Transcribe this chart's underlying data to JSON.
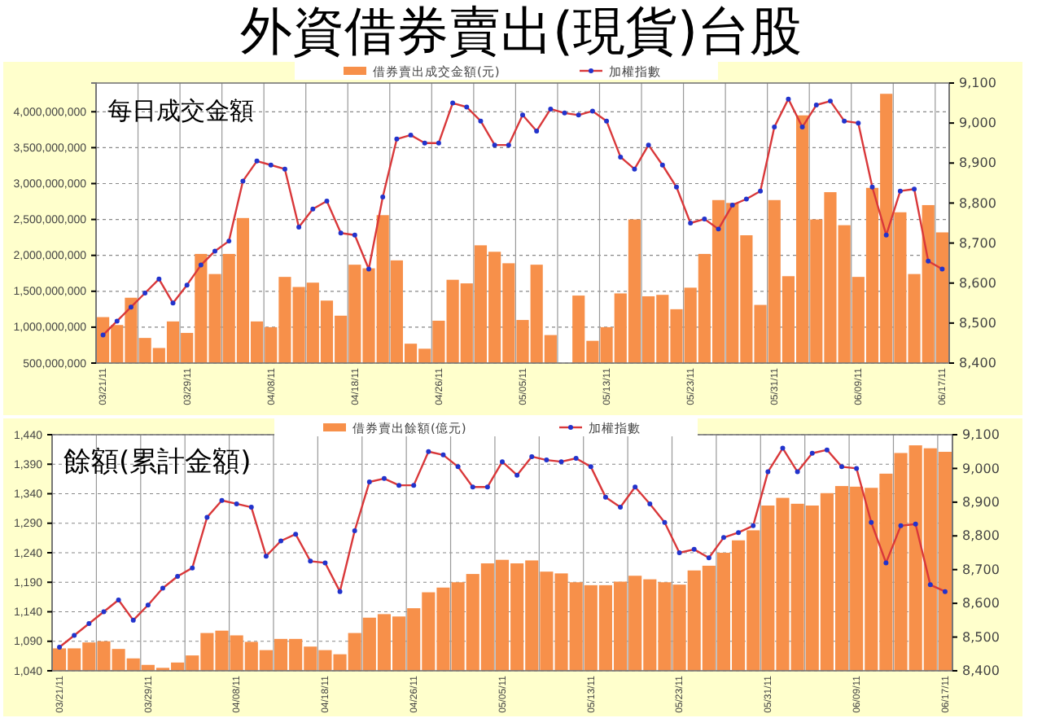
{
  "chart_data": [
    {
      "type": "bar",
      "title": "外資借券賣出(現貨)台股",
      "annotations": [
        "每日成交金額"
      ],
      "categories": [
        "03/21/11",
        null,
        null,
        null,
        null,
        null,
        "03/29/11",
        null,
        null,
        null,
        null,
        null,
        "04/08/11",
        null,
        null,
        null,
        null,
        null,
        "04/18/11",
        null,
        null,
        null,
        null,
        null,
        "04/26/11",
        null,
        null,
        null,
        null,
        null,
        "05/05/11",
        null,
        null,
        null,
        null,
        null,
        "05/13/11",
        null,
        null,
        null,
        null,
        null,
        "05/23/11",
        null,
        null,
        null,
        null,
        null,
        "05/31/11",
        null,
        null,
        null,
        null,
        null,
        "06/09/11",
        null,
        null,
        null,
        null,
        null,
        "06/17/11"
      ],
      "series": [
        {
          "name": "借券賣出成交金額(元)",
          "color": "#f7904a",
          "values": [
            1140000000,
            1030000000,
            1410000000,
            850000000,
            710000000,
            1080000000,
            920000000,
            2020000000,
            1740000000,
            2020000000,
            2520000000,
            1080000000,
            1000000000,
            1700000000,
            1560000000,
            1620000000,
            1370000000,
            1160000000,
            1870000000,
            1820000000,
            2560000000,
            1930000000,
            770000000,
            700000000,
            1090000000,
            1660000000,
            1610000000,
            2140000000,
            2050000000,
            1890000000,
            1100000000,
            1870000000,
            890000000,
            null,
            1440000000,
            810000000,
            1000000000,
            1470000000,
            2500000000,
            1430000000,
            1450000000,
            1250000000,
            1550000000,
            2020000000,
            2770000000,
            2730000000,
            2280000000,
            1310000000,
            2770000000,
            1710000000,
            3950000000,
            2500000000,
            2880000000,
            2420000000,
            1700000000,
            2940000000,
            4250000000,
            2600000000,
            1740000000,
            2700000000,
            2320000000
          ]
        },
        {
          "type": "line",
          "name": "加權指數",
          "color": "#d9383a",
          "axis": "y2",
          "values": [
            8470,
            8505,
            8540,
            8575,
            8610,
            8550,
            8595,
            8645,
            8680,
            8705,
            8855,
            8905,
            8895,
            8885,
            8740,
            8785,
            8805,
            8725,
            8720,
            8635,
            8815,
            8960,
            8970,
            8950,
            8950,
            9050,
            9040,
            9005,
            8945,
            8945,
            9020,
            8980,
            9035,
            9025,
            9020,
            9030,
            9005,
            8915,
            8885,
            8945,
            8895,
            8840,
            8750,
            8760,
            8735,
            8795,
            8810,
            8830,
            8990,
            9060,
            8990,
            9045,
            9055,
            9005,
            9000,
            8840,
            8720,
            8830,
            8835,
            8655,
            8635
          ]
        }
      ],
      "ylim": [
        500000000,
        4400000000
      ],
      "yticks": [
        {
          "value": 500000000,
          "label": "500,000,000"
        },
        {
          "value": 1000000000,
          "label": "1,000,000,000"
        },
        {
          "value": 1500000000,
          "label": "1,500,000,000"
        },
        {
          "value": 2000000000,
          "label": "2,000,000,000"
        },
        {
          "value": 2500000000,
          "label": "2,500,000,000"
        },
        {
          "value": 3000000000,
          "label": "3,000,000,000"
        },
        {
          "value": 3500000000,
          "label": "3,500,000,000"
        },
        {
          "value": 4000000000,
          "label": "4,000,000,000"
        }
      ],
      "y2lim": [
        8400,
        9100
      ],
      "y2ticks": [
        {
          "value": 8400,
          "label": "8,400"
        },
        {
          "value": 8500,
          "label": "8,500"
        },
        {
          "value": 8600,
          "label": "8,600"
        },
        {
          "value": 8700,
          "label": "8,700"
        },
        {
          "value": 8800,
          "label": "8,800"
        },
        {
          "value": 8900,
          "label": "8,900"
        },
        {
          "value": 9000,
          "label": "9,000"
        },
        {
          "value": 9100,
          "label": "9,100"
        }
      ],
      "grid": true,
      "legend": "top",
      "marker": "circle"
    },
    {
      "type": "bar",
      "annotations": [
        "餘額(累計金額)"
      ],
      "categories": [
        "03/21/11",
        null,
        null,
        null,
        null,
        null,
        "03/29/11",
        null,
        null,
        null,
        null,
        null,
        "04/08/11",
        null,
        null,
        null,
        null,
        null,
        "04/18/11",
        null,
        null,
        null,
        null,
        null,
        "04/26/11",
        null,
        null,
        null,
        null,
        null,
        "05/05/11",
        null,
        null,
        null,
        null,
        null,
        "05/13/11",
        null,
        null,
        null,
        null,
        null,
        "05/23/11",
        null,
        null,
        null,
        null,
        null,
        "05/31/11",
        null,
        null,
        null,
        null,
        null,
        "06/09/11",
        null,
        null,
        null,
        null,
        null,
        "06/17/11"
      ],
      "series": [
        {
          "name": "借券賣出餘額(億元)",
          "color": "#f7904a",
          "values": [
            1078,
            1078,
            1088,
            1090,
            1077,
            1061,
            1050,
            1045,
            1054,
            1066,
            1104,
            1108,
            1100,
            1089,
            1075,
            1094,
            1094,
            1081,
            1075,
            1068,
            1104,
            1130,
            1136,
            1132,
            1146,
            1173,
            1181,
            1190,
            1204,
            1222,
            1228,
            1222,
            1227,
            1208,
            1205,
            1190,
            1185,
            1185,
            1191,
            1201,
            1195,
            1190,
            1186,
            1210,
            1218,
            1240,
            1261,
            1278,
            1320,
            1333,
            1323,
            1320,
            1341,
            1353,
            1352,
            1350,
            1374,
            1409,
            1422,
            1417,
            1411
          ]
        },
        {
          "type": "line",
          "name": "加權指數",
          "color": "#d9383a",
          "axis": "y2",
          "values": [
            8470,
            8505,
            8540,
            8575,
            8610,
            8550,
            8595,
            8645,
            8680,
            8705,
            8855,
            8905,
            8895,
            8885,
            8740,
            8785,
            8805,
            8725,
            8720,
            8635,
            8815,
            8960,
            8970,
            8950,
            8950,
            9050,
            9040,
            9005,
            8945,
            8945,
            9020,
            8980,
            9035,
            9025,
            9020,
            9030,
            9005,
            8915,
            8885,
            8945,
            8895,
            8840,
            8750,
            8760,
            8735,
            8795,
            8810,
            8830,
            8990,
            9060,
            8990,
            9045,
            9055,
            9005,
            9000,
            8840,
            8720,
            8830,
            8835,
            8655,
            8635
          ]
        }
      ],
      "ylim": [
        1040,
        1440
      ],
      "yticks": [
        {
          "value": 1040,
          "label": "1,040"
        },
        {
          "value": 1090,
          "label": "1,090"
        },
        {
          "value": 1140,
          "label": "1,140"
        },
        {
          "value": 1190,
          "label": "1,190"
        },
        {
          "value": 1240,
          "label": "1,240"
        },
        {
          "value": 1290,
          "label": "1,290"
        },
        {
          "value": 1340,
          "label": "1,340"
        },
        {
          "value": 1390,
          "label": "1,390"
        },
        {
          "value": 1440,
          "label": "1,440"
        }
      ],
      "y2lim": [
        8400,
        9100
      ],
      "y2ticks": [
        {
          "value": 8400,
          "label": "8,400"
        },
        {
          "value": 8500,
          "label": "8,500"
        },
        {
          "value": 8600,
          "label": "8,600"
        },
        {
          "value": 8700,
          "label": "8,700"
        },
        {
          "value": 8800,
          "label": "8,800"
        },
        {
          "value": 8900,
          "label": "8,900"
        },
        {
          "value": 9000,
          "label": "9,000"
        },
        {
          "value": 9100,
          "label": "9,100"
        }
      ],
      "grid": true,
      "legend": "top",
      "marker": "circle"
    }
  ]
}
